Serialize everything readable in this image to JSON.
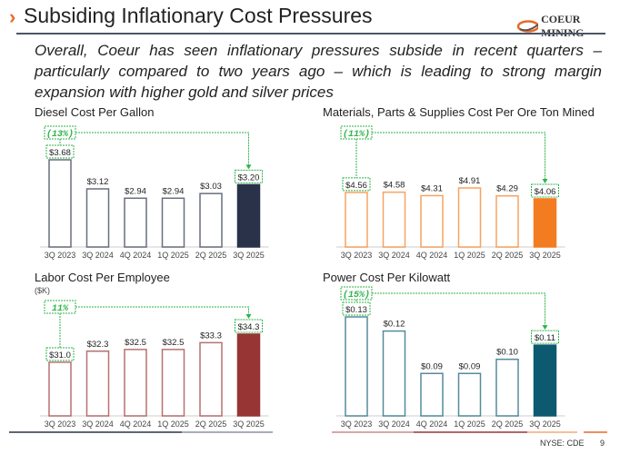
{
  "header": {
    "title": "Subsiding Inflationary Cost Pressures",
    "logo_text": "COEUR MINING",
    "chevron_icon": "chevron-right-icon"
  },
  "subtitle": "Overall, Coeur has seen inflationary pressures subside in recent quarters – particularly compared to two years ago – which is leading to strong margin expansion with higher gold and silver prices",
  "footer": {
    "ticker": "NYSE: CDE",
    "page": "9"
  },
  "colors": {
    "accent": "#e8692a",
    "annotation": "#2db34a",
    "diesel": "#293249",
    "materials": "#f47c20",
    "labor": "#973535",
    "power": "#0d5a70"
  },
  "chart_data": [
    {
      "id": "diesel",
      "type": "bar",
      "title": "Diesel Cost Per Gallon",
      "categories": [
        "3Q 2023",
        "3Q 2024",
        "4Q 2024",
        "1Q 2025",
        "2Q 2025",
        "3Q 2025"
      ],
      "values": [
        3.68,
        3.12,
        2.94,
        2.94,
        3.03,
        3.2
      ],
      "labels": [
        "$3.68",
        "$3.12",
        "$2.94",
        "$2.94",
        "$3.03",
        "$3.20"
      ],
      "ylim": [
        2.0,
        3.9
      ],
      "change": "(13%)",
      "color": "#293249"
    },
    {
      "id": "materials",
      "type": "bar",
      "title": "Materials, Parts & Supplies Cost Per Ore Ton Mined",
      "categories": [
        "3Q 2023",
        "3Q 2024",
        "4Q 2024",
        "1Q 2025",
        "2Q 2025",
        "3Q 2025"
      ],
      "values": [
        4.56,
        4.58,
        4.31,
        4.91,
        4.29,
        4.06
      ],
      "labels": [
        "$4.56",
        "$4.58",
        "$4.31",
        "$4.91",
        "$4.29",
        "$4.06"
      ],
      "ylim": [
        0.3,
        9.5
      ],
      "change": "(11%)",
      "color": "#f47c20"
    },
    {
      "id": "labor",
      "type": "bar",
      "title": "Labor Cost Per Employee",
      "unit": "($K)",
      "categories": [
        "3Q 2023",
        "3Q 2024",
        "4Q 2024",
        "1Q 2025",
        "2Q 2025",
        "3Q 2025"
      ],
      "values": [
        31.0,
        32.3,
        32.5,
        32.5,
        33.3,
        34.3
      ],
      "labels": [
        "$31.0",
        "$32.3",
        "$32.5",
        "$32.5",
        "$33.3",
        "$34.3"
      ],
      "ylim": [
        24.7,
        36
      ],
      "change": "11%",
      "color": "#973535"
    },
    {
      "id": "power",
      "type": "bar",
      "title": "Power Cost Per Kilowatt",
      "categories": [
        "3Q 2023",
        "3Q 2024",
        "4Q 2024",
        "1Q 2025",
        "2Q 2025",
        "3Q 2025"
      ],
      "values": [
        0.13,
        0.12,
        0.09,
        0.09,
        0.1,
        0.11
      ],
      "labels": [
        "$0.13",
        "$0.12",
        "$0.09",
        "$0.09",
        "$0.10",
        "$0.11"
      ],
      "ylim": [
        0.06,
        0.138
      ],
      "change": "(15%)",
      "color": "#0d5a70"
    }
  ]
}
